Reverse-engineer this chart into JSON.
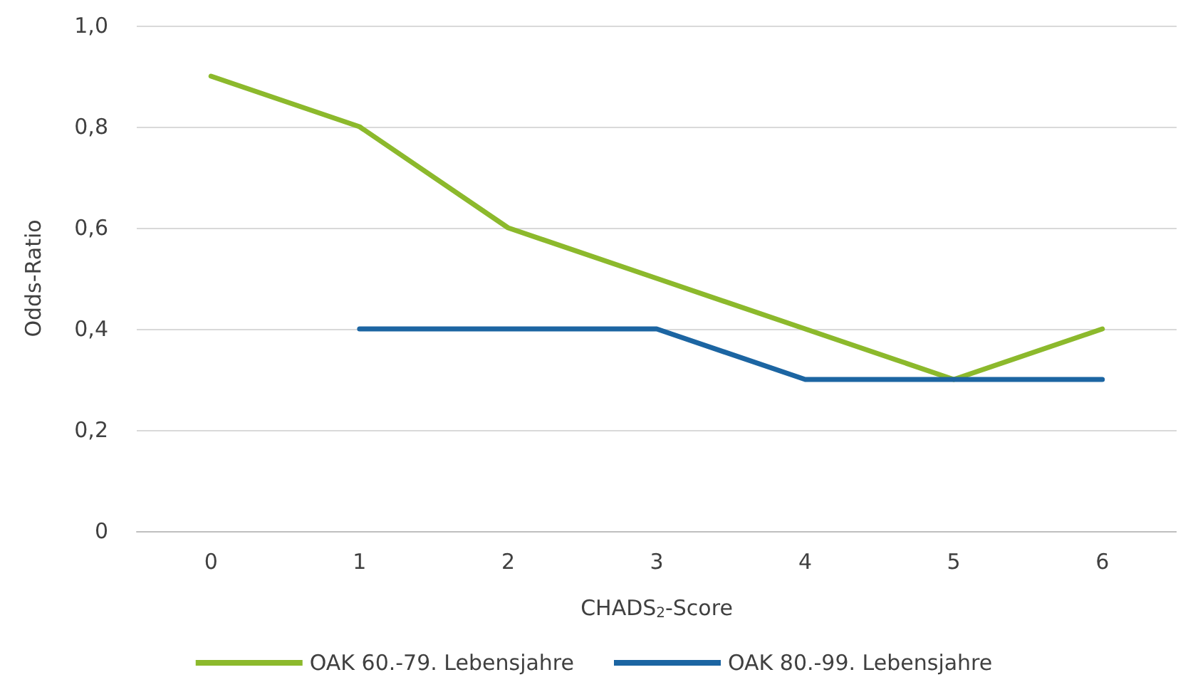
{
  "chart_data": {
    "type": "line",
    "xlabel": "CHADS$_{2}$-Score",
    "ylabel": "Odds-Ratio",
    "categories": [
      "0",
      "1",
      "2",
      "3",
      "4",
      "5",
      "6"
    ],
    "series": [
      {
        "name": "OAK 60.-79. Lebensjahre",
        "color": "#8cb92c",
        "values": [
          0.9,
          0.8,
          0.6,
          0.5,
          0.4,
          0.3,
          0.4
        ]
      },
      {
        "name": "OAK 80.-99. Lebensjahre",
        "color": "#1c65a2",
        "values": [
          null,
          0.4,
          0.4,
          0.4,
          0.3,
          0.3,
          0.3
        ]
      }
    ],
    "ylim": [
      0,
      1
    ],
    "yticks": [
      0,
      {
        "value": 0.2,
        "label": "0,2"
      },
      {
        "value": 0.4,
        "label": "0,4"
      },
      {
        "value": 0.6,
        "label": "0,6"
      },
      {
        "value": 0.8,
        "label": "0,8"
      },
      {
        "value": 1,
        "label": "1,0"
      }
    ],
    "grid": "y",
    "legend": "bottom",
    "marker": "none",
    "line_style": "solid"
  }
}
